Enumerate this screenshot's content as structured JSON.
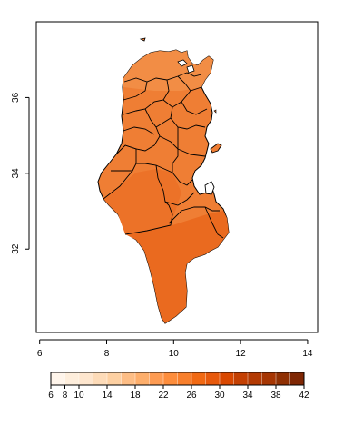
{
  "map": {
    "x_axis": {
      "ticks": [
        6,
        8,
        10,
        12,
        14
      ],
      "tick_labels": [
        "6",
        "8",
        "10",
        "12",
        "14"
      ],
      "range": [
        5.9,
        14.3
      ]
    },
    "y_axis": {
      "ticks": [
        32,
        34,
        36
      ],
      "tick_labels": [
        "32",
        "34",
        "36"
      ],
      "range": [
        29.8,
        38.0
      ]
    },
    "fill_colors": [
      "#f28d45",
      "#ef7e34",
      "#ea6a1f",
      "#e96219"
    ]
  },
  "legend": {
    "min": 6,
    "max": 42,
    "step": 2,
    "tick_values": [
      6,
      8,
      10,
      14,
      18,
      22,
      26,
      30,
      34,
      38,
      42
    ],
    "tick_labels": [
      "6",
      "8",
      "10",
      "14",
      "18",
      "22",
      "26",
      "30",
      "34",
      "38",
      "42"
    ],
    "colors": [
      "#fff5eb",
      "#feeedc",
      "#fee6ce",
      "#fddbb8",
      "#fdd0a2",
      "#fdbd85",
      "#fdae6b",
      "#fd9b52",
      "#fd8d3c",
      "#f87f2c",
      "#f16913",
      "#e7590c",
      "#d94801",
      "#c44003",
      "#b33a03",
      "#a63603",
      "#8f3003",
      "#7f2704"
    ]
  }
}
